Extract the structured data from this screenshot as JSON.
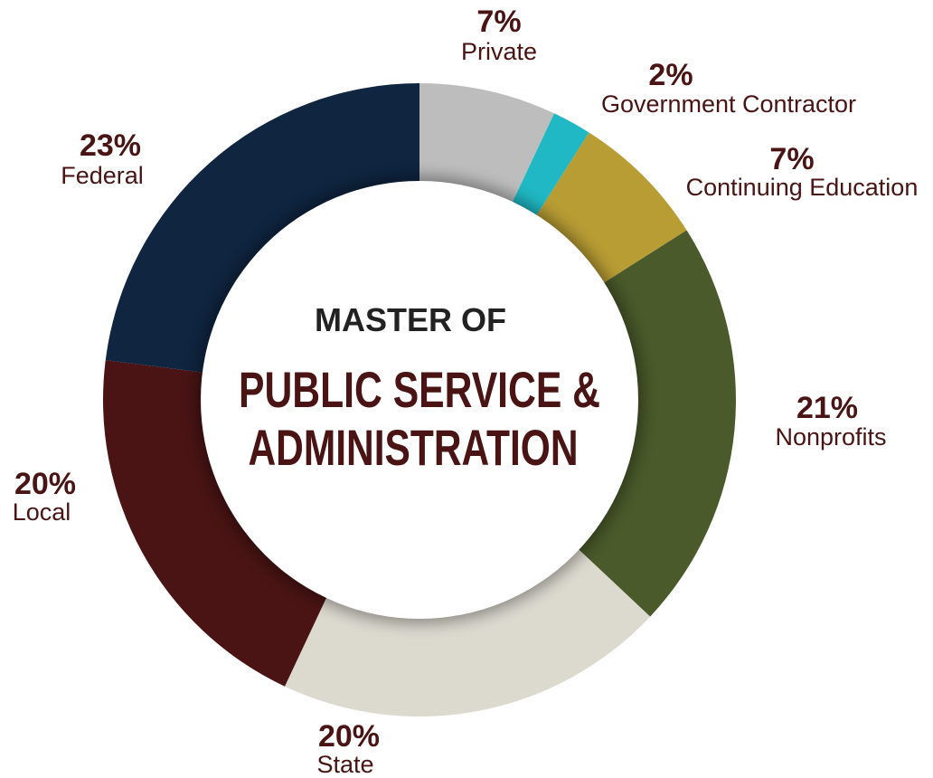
{
  "chart_data": {
    "type": "pie",
    "title_line1": "MASTER OF",
    "title_line2": "PUBLIC SERVICE &",
    "title_line3": "ADMINISTRATION",
    "slices": [
      {
        "label": "Private",
        "value": 7,
        "display": "7%",
        "color": "#bdbdbd"
      },
      {
        "label": "Government Contractor",
        "value": 2,
        "display": "2%",
        "color": "#1fb8c4"
      },
      {
        "label": "Continuing Education",
        "value": 7,
        "display": "7%",
        "color": "#b89c34"
      },
      {
        "label": "Nonprofits",
        "value": 21,
        "display": "21%",
        "color": "#4a5a2a"
      },
      {
        "label": "State",
        "value": 20,
        "display": "20%",
        "color": "#dcd9cf"
      },
      {
        "label": "Local",
        "value": 20,
        "display": "20%",
        "color": "#4a1414"
      },
      {
        "label": "Federal",
        "value": 23,
        "display": "23%",
        "color": "#0f2540"
      }
    ]
  }
}
